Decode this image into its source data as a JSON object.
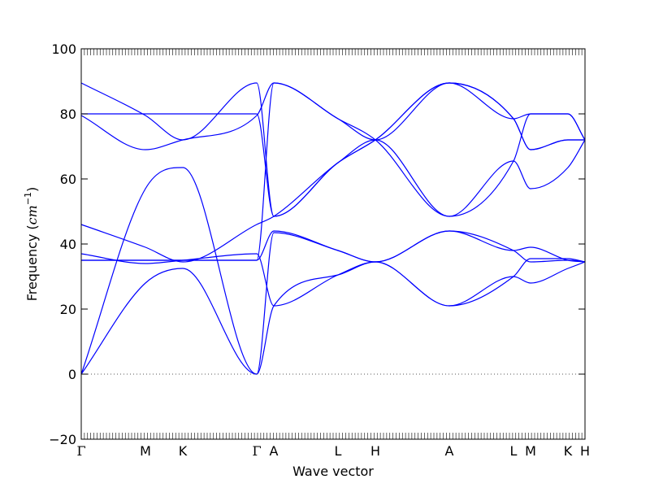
{
  "chart_data": {
    "type": "line",
    "title": "",
    "xlabel": "Wave vector",
    "ylabel": "Frequency",
    "ylabel_unit": "cm",
    "ylabel_unit_exp": "−1",
    "ylim": [
      -20,
      100
    ],
    "yticks": [
      -20,
      0,
      20,
      40,
      60,
      80,
      100
    ],
    "ytick_labels": [
      "−20",
      "0",
      "20",
      "40",
      "60",
      "80",
      "100"
    ],
    "xlim": [
      0,
      1
    ],
    "kpoints": [
      {
        "label": "Γ",
        "x": 0.0
      },
      {
        "label": "M",
        "x": 0.1274
      },
      {
        "label": "K",
        "x": 0.2016
      },
      {
        "label": "Γ",
        "x": 0.3484
      },
      {
        "label": "A",
        "x": 0.3823
      },
      {
        "label": "L",
        "x": 0.5097
      },
      {
        "label": "H",
        "x": 0.5839
      },
      {
        "label": "A",
        "x": 0.7306
      },
      {
        "label": "L",
        "x": 0.8581
      },
      {
        "label": "M",
        "x": 0.8919
      },
      {
        "label": "K",
        "x": 0.9661
      },
      {
        "label": "H",
        "x": 1.0
      }
    ],
    "zero_line": true,
    "line_color": "#0000ff",
    "series": [
      {
        "x": [
          0,
          0.1274,
          0.2016,
          0.3484,
          0.3823,
          0.5097,
          0.5839,
          0.7306,
          0.8581,
          0.8919,
          0.9661,
          1.0
        ],
        "y": [
          0,
          28,
          32.5,
          0,
          21,
          30.5,
          34.5,
          21,
          30,
          28,
          32.5,
          34.5
        ]
      },
      {
        "x": [
          0,
          0.1274,
          0.2016,
          0.3484,
          0.3823,
          0.5097,
          0.5839,
          0.7306,
          0.8581,
          0.8919,
          0.9661,
          1.0
        ],
        "y": [
          0,
          57,
          63.5,
          0,
          43.5,
          38,
          34.5,
          44,
          38,
          34.5,
          35,
          34.5
        ]
      },
      {
        "x": [
          0,
          0.1274,
          0.2016,
          0.3484,
          0.3823,
          0.5097,
          0.5839,
          0.7306,
          0.8581,
          0.8919,
          0.9661,
          1.0
        ],
        "y": [
          35,
          35,
          35,
          35,
          44,
          38,
          34.5,
          44,
          38,
          39,
          35,
          34.5
        ]
      },
      {
        "x": [
          0,
          0.1274,
          0.2016,
          0.3484,
          0.3823,
          0.5097,
          0.5839,
          0.7306,
          0.8581,
          0.8919,
          0.9661,
          1.0
        ],
        "y": [
          37,
          34,
          35,
          37,
          21,
          30.5,
          34.5,
          21,
          30,
          35.5,
          35.5,
          34.5
        ]
      },
      {
        "x": [
          0,
          0.1274,
          0.2016,
          0.3484,
          0.3823,
          0.5097,
          0.5839,
          0.7306,
          0.8581,
          0.8919,
          0.9661,
          1.0
        ],
        "y": [
          46,
          39,
          34.5,
          46,
          48.5,
          65,
          72,
          89.5,
          78.5,
          69,
          72,
          72
        ]
      },
      {
        "x": [
          0,
          0.1274,
          0.2016,
          0.3484,
          0.3823,
          0.5097,
          0.5839,
          0.7306,
          0.8581,
          0.8919,
          0.9661,
          1.0
        ],
        "y": [
          35,
          35,
          35,
          35,
          89.5,
          78.5,
          72,
          48.5,
          65.5,
          57,
          63.5,
          72
        ]
      },
      {
        "x": [
          0,
          0.1274,
          0.2016,
          0.3484,
          0.3823,
          0.5097,
          0.5839,
          0.7306,
          0.8581,
          0.8919,
          0.9661,
          1.0
        ],
        "y": [
          79.5,
          69,
          72,
          79.5,
          89.5,
          78.5,
          72,
          89.5,
          78.5,
          80,
          80,
          72
        ]
      },
      {
        "x": [
          0,
          0.1274,
          0.2016,
          0.3484,
          0.3823,
          0.5097,
          0.5839,
          0.7306,
          0.8581,
          0.8919,
          0.9661,
          1.0
        ],
        "y": [
          80,
          80,
          80,
          80,
          48.5,
          65,
          72,
          48.5,
          65.5,
          80,
          80,
          72
        ]
      },
      {
        "x": [
          0,
          0.1274,
          0.2016,
          0.3484,
          0.3823,
          0.5097,
          0.5839,
          0.7306,
          0.8581,
          0.8919,
          0.9661,
          1.0
        ],
        "y": [
          89.5,
          79.5,
          72,
          89.5,
          48.5,
          65,
          72,
          89.5,
          78.5,
          69,
          72,
          72
        ]
      }
    ]
  }
}
